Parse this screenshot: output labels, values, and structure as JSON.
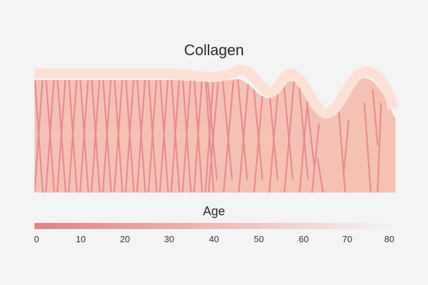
{
  "title": "Collagen",
  "axis_label": "Age",
  "ticks": [
    "0",
    "10",
    "20",
    "30",
    "40",
    "50",
    "60",
    "70",
    "80"
  ],
  "colors": {
    "background": "#f5f4f4",
    "tissue": "#f4c2b5",
    "skin_surface": "#fde1d7",
    "fiber": "#e98a90",
    "bar_start": "#e18189",
    "bar_end": "#f5f4f4"
  }
}
